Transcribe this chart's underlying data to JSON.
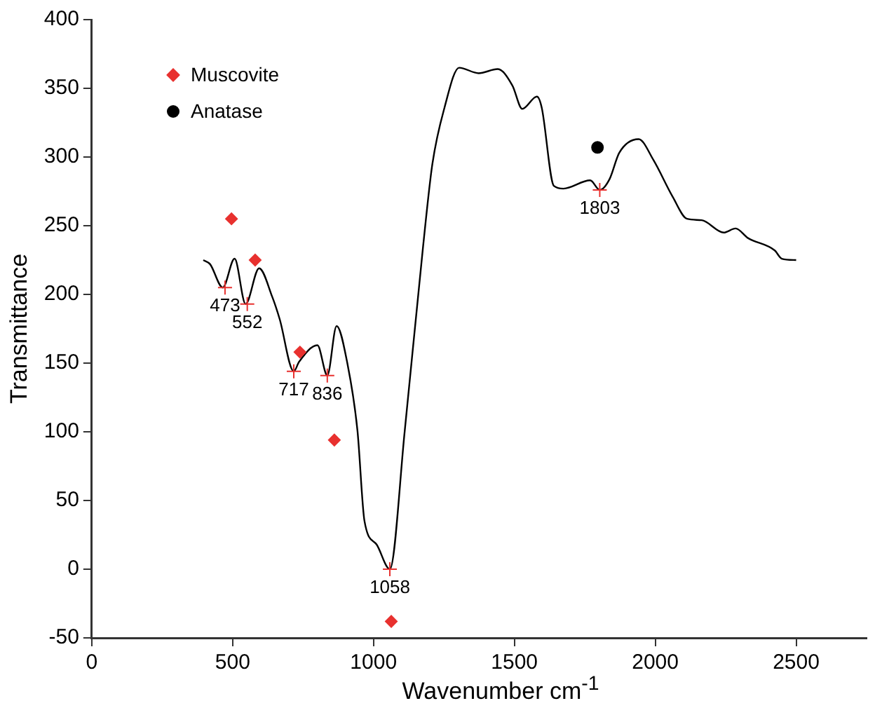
{
  "chart_data": {
    "type": "line",
    "xlabel": "Wavenumber cm$^{-1}$",
    "ylabel": "Transmittance",
    "xlim": [
      0,
      2750
    ],
    "ylim": [
      -50,
      400
    ],
    "xticks": [
      0,
      500,
      1000,
      1500,
      2000,
      2500
    ],
    "yticks": [
      -50,
      0,
      50,
      100,
      150,
      200,
      250,
      300,
      350,
      400
    ],
    "grid": false,
    "legend": "top left",
    "series": [
      {
        "color": "#000000",
        "marker": "none",
        "x": [
          396,
          420,
          465,
          507,
          546,
          594,
          641,
          667,
          717,
          736,
          801,
          836,
          869,
          908,
          943,
          968,
          1011,
          1058,
          1111,
          1175,
          1209,
          1252,
          1304,
          1373,
          1441,
          1493,
          1528,
          1580,
          1597,
          1640,
          1674,
          1769,
          1803,
          1838,
          1872,
          1941,
          1993,
          2062,
          2113,
          2165,
          2243,
          2285,
          2329,
          2424,
          2449,
          2500
        ],
        "values": [
          225,
          222,
          205,
          226,
          193,
          219,
          198,
          182,
          144,
          151,
          163,
          141,
          177,
          149,
          101,
          35,
          18,
          0,
          101,
          233,
          295,
          336,
          365,
          361,
          364,
          352,
          335,
          344,
          336,
          279,
          277,
          283,
          276,
          284,
          303,
          313,
          298,
          271,
          255,
          254,
          245,
          248,
          241,
          232,
          226,
          225
        ]
      },
      {
        "type": "scatter",
        "name": "Muscovite",
        "color": "#e8312f",
        "marker": "diamond",
        "x": [
          496,
          580,
          739,
          861,
          1063
        ],
        "values": [
          255,
          225,
          158,
          94,
          -38
        ]
      },
      {
        "type": "scatter",
        "name": "Anatase",
        "color": "#000000",
        "marker": "circle",
        "x": [
          1795
        ],
        "values": [
          307
        ]
      },
      {
        "type": "scatter",
        "color": "#e8312f",
        "marker": "cross",
        "x": [
          473,
          552,
          717,
          836,
          1058,
          1803
        ],
        "values": [
          205,
          193,
          144,
          141,
          0,
          276
        ]
      }
    ],
    "annotations": [
      {
        "text": "473",
        "x": 473,
        "y": 205
      },
      {
        "text": "552",
        "x": 552,
        "y": 193
      },
      {
        "text": "717",
        "x": 717,
        "y": 144
      },
      {
        "text": "836",
        "x": 836,
        "y": 141
      },
      {
        "text": "1058",
        "x": 1058,
        "y": 0
      },
      {
        "text": "1803",
        "x": 1803,
        "y": 276
      }
    ]
  }
}
